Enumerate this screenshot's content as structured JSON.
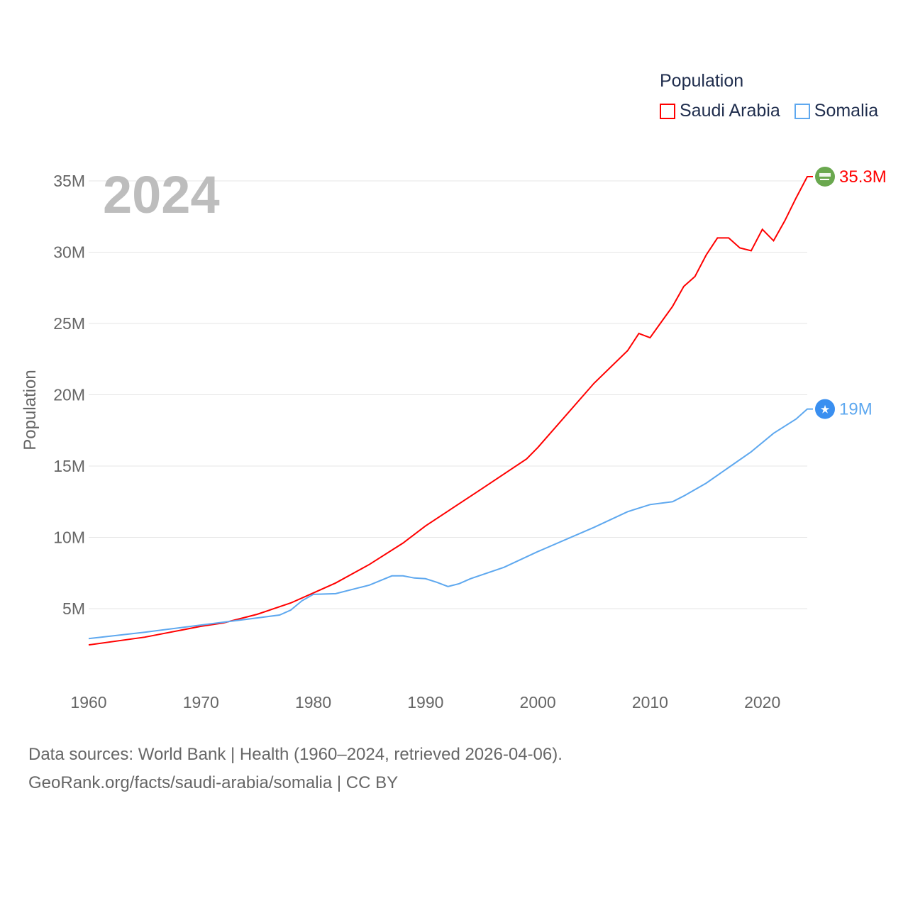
{
  "chart_data": {
    "type": "line",
    "title": "2024",
    "xlabel": "",
    "ylabel": "Population",
    "xlim": [
      1960,
      2024
    ],
    "ylim": [
      0,
      35000000
    ],
    "x_ticks": [
      1960,
      1970,
      1980,
      1990,
      2000,
      2010,
      2020
    ],
    "x_tick_labels": [
      "1960",
      "1970",
      "1980",
      "1990",
      "2000",
      "2010",
      "2020"
    ],
    "y_ticks": [
      5000000,
      10000000,
      15000000,
      20000000,
      25000000,
      30000000,
      35000000
    ],
    "y_tick_labels": [
      "5M",
      "10M",
      "15M",
      "20M",
      "25M",
      "30M",
      "35M"
    ],
    "grid": true,
    "legend": {
      "title": "Population",
      "placement": "top-right"
    },
    "series": [
      {
        "name": "Saudi Arabia",
        "color": "#ff0000",
        "end_label": "35.3M",
        "flag_icon": "saudi-arabia-flag-icon",
        "flag_color": "#6aa84f",
        "x": [
          1960,
          1965,
          1970,
          1972,
          1975,
          1978,
          1980,
          1982,
          1985,
          1988,
          1990,
          1995,
          1999,
          2000,
          2005,
          2008,
          2009,
          2010,
          2011,
          2012,
          2013,
          2014,
          2015,
          2016,
          2017,
          2018,
          2019,
          2020,
          2021,
          2022,
          2023,
          2024
        ],
        "values": [
          2460000,
          3000000,
          3760000,
          4000000,
          4600000,
          5400000,
          6100000,
          6800000,
          8100000,
          9600000,
          10800000,
          13400000,
          15500000,
          16300000,
          20800000,
          23100000,
          24300000,
          24000000,
          25100000,
          26200000,
          27600000,
          28300000,
          29800000,
          31000000,
          31000000,
          30300000,
          30100000,
          31600000,
          30800000,
          32200000,
          33800000,
          35300000
        ]
      },
      {
        "name": "Somalia",
        "color": "#5ea8ef",
        "end_label": "19M",
        "flag_icon": "somalia-flag-icon",
        "flag_color": "#3a8ff0",
        "x": [
          1960,
          1965,
          1970,
          1975,
          1977,
          1978,
          1979,
          1980,
          1982,
          1985,
          1987,
          1988,
          1989,
          1990,
          1991,
          1992,
          1993,
          1994,
          1997,
          2000,
          2005,
          2008,
          2010,
          2012,
          2013,
          2015,
          2017,
          2019,
          2021,
          2023,
          2024
        ],
        "values": [
          2900000,
          3350000,
          3850000,
          4350000,
          4550000,
          4900000,
          5550000,
          6000000,
          6050000,
          6650000,
          7300000,
          7300000,
          7150000,
          7100000,
          6850000,
          6550000,
          6750000,
          7100000,
          7900000,
          9000000,
          10700000,
          11800000,
          12300000,
          12500000,
          12900000,
          13800000,
          14900000,
          16000000,
          17300000,
          18300000,
          19000000
        ]
      }
    ]
  },
  "footer": {
    "line1": "Data sources: World Bank | Health (1960–2024, retrieved 2026-04-06).",
    "line2": "GeoRank.org/facts/saudi-arabia/somalia | CC BY"
  }
}
